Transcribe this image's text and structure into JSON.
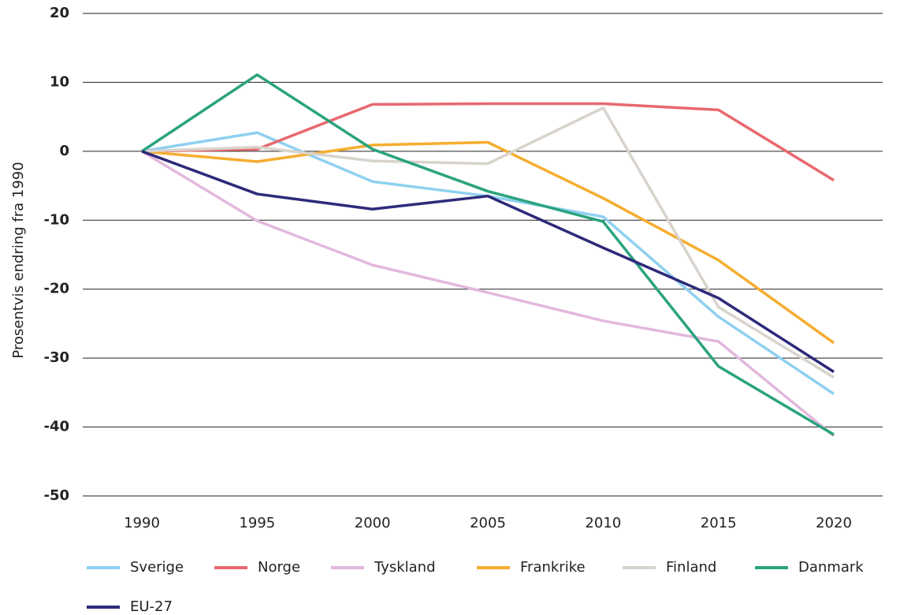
{
  "chart_data": {
    "type": "line",
    "y_label": "Prosentvis endring fra 1990",
    "x": [
      1990,
      1995,
      2000,
      2005,
      2010,
      2015,
      2020
    ],
    "xlim": [
      1990,
      2020
    ],
    "xticks": [
      1990,
      1995,
      2000,
      2005,
      2010,
      2015,
      2020
    ],
    "ylim": [
      -50,
      20
    ],
    "yticks": [
      -50,
      -40,
      -30,
      -20,
      -10,
      0,
      10,
      20
    ],
    "grid": true,
    "legend": "bottom",
    "series": [
      {
        "name": "Sverige",
        "color": "#8fd0f0",
        "values": [
          0,
          2.7,
          -4.4,
          -6.5,
          -9.5,
          -24,
          -35.2
        ]
      },
      {
        "name": "Norge",
        "color": "#e8686e",
        "values": [
          0,
          0.3,
          6.8,
          6.9,
          6.9,
          6,
          -4.2
        ]
      },
      {
        "name": "Tyskland",
        "color": "#e2b8dd",
        "values": [
          0,
          -10.1,
          -16.5,
          -20.5,
          -24.6,
          -27.6,
          -41.3
        ]
      },
      {
        "name": "Frankrike",
        "color": "#f5ad2f",
        "values": [
          0,
          -1.5,
          0.9,
          1.3,
          -6.8,
          -15.8,
          -27.8
        ]
      },
      {
        "name": "Finland",
        "color": "#d8d3cc",
        "values": [
          0,
          0.6,
          -1.4,
          -1.8,
          6.3,
          -22.6,
          -32.8
        ]
      },
      {
        "name": "Danmark",
        "color": "#2aa37e",
        "values": [
          0,
          11.1,
          0.3,
          -5.8,
          -10.2,
          -31.2,
          -41.1
        ]
      },
      {
        "name": "EU-27",
        "color": "#2e2a7a",
        "values": [
          0,
          -6.2,
          -8.4,
          -6.5,
          -14,
          -21.3,
          -32
        ]
      }
    ]
  }
}
